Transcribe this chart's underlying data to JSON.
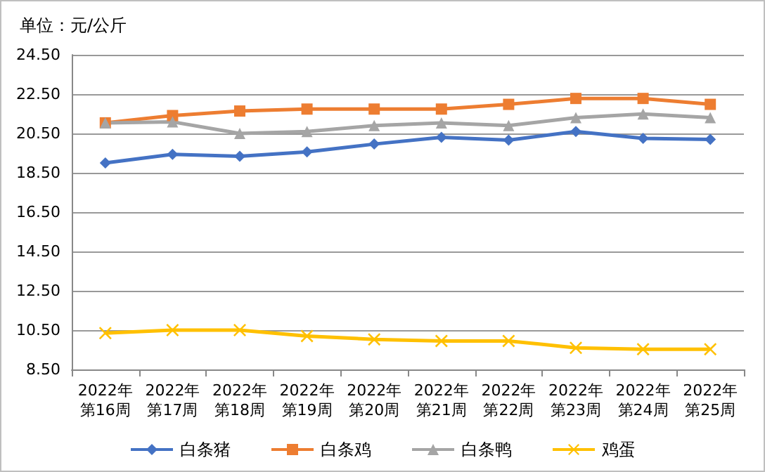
{
  "chart_data": {
    "type": "line",
    "title": "单位：元/公斤",
    "categories": [
      "2022年第16周",
      "2022年第17周",
      "2022年第18周",
      "2022年第19周",
      "2022年第20周",
      "2022年第21周",
      "2022年第22周",
      "2022年第23周",
      "2022年第24周",
      "2022年第25周"
    ],
    "series": [
      {
        "name": "白条猪",
        "color": "#4472c4",
        "marker": "diamond",
        "values": [
          19.0,
          19.44,
          19.34,
          19.56,
          19.96,
          20.3,
          20.16,
          20.6,
          20.25,
          20.2
        ]
      },
      {
        "name": "白条鸡",
        "color": "#ed7d31",
        "marker": "square",
        "values": [
          21.04,
          21.41,
          21.64,
          21.74,
          21.74,
          21.74,
          21.98,
          22.28,
          22.28,
          21.98
        ]
      },
      {
        "name": "白条鸭",
        "color": "#a5a5a5",
        "marker": "triangle",
        "values": [
          21.04,
          21.09,
          20.5,
          20.6,
          20.9,
          21.04,
          20.9,
          21.3,
          21.49,
          21.3
        ]
      },
      {
        "name": "鸡蛋",
        "color": "#ffc000",
        "marker": "cross",
        "values": [
          10.35,
          10.5,
          10.5,
          10.2,
          10.03,
          9.95,
          9.95,
          9.6,
          9.53,
          9.53
        ]
      }
    ],
    "ylim": [
      8.5,
      24.5
    ],
    "yticks": [
      {
        "value": 8.5,
        "label": "8.50"
      },
      {
        "value": 10.5,
        "label": "10.50"
      },
      {
        "value": 12.5,
        "label": "12.50"
      },
      {
        "value": 14.5,
        "label": "14.50"
      },
      {
        "value": 16.5,
        "label": "16.50"
      },
      {
        "value": 18.5,
        "label": "18.50"
      },
      {
        "value": 20.5,
        "label": "20.50"
      },
      {
        "value": 22.5,
        "label": "22.50"
      },
      {
        "value": 24.5,
        "label": "24.50"
      }
    ],
    "grid": "y",
    "legend": "bottom",
    "line_style": "solid"
  }
}
